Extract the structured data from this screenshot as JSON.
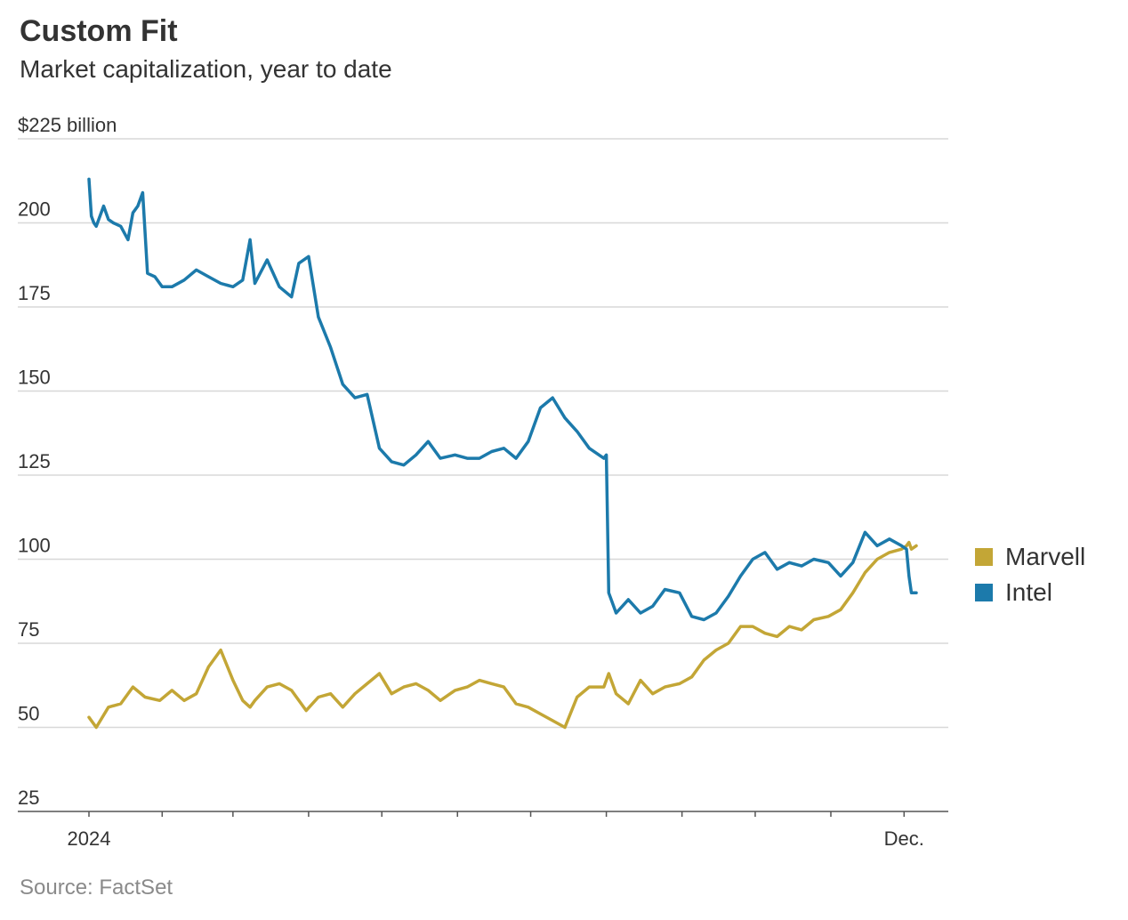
{
  "title": "Custom Fit",
  "subtitle": "Market capitalization, year to date",
  "source": "Source: FactSet",
  "colors": {
    "Marvell": "#c3a636",
    "Intel": "#1c7aab",
    "grid": "#d8d8d8",
    "axis": "#555555"
  },
  "chart_data": {
    "type": "line",
    "title": "Custom Fit",
    "subtitle": "Market capitalization, year to date",
    "ylim": [
      25,
      225
    ],
    "yticks": [
      25,
      50,
      75,
      100,
      125,
      150,
      175,
      200,
      225
    ],
    "ytick_labels": [
      "25",
      "50",
      "75",
      "100",
      "125",
      "150",
      "175",
      "200",
      "$225 billion"
    ],
    "xlim": [
      "2024-01-02",
      "2024-12-06"
    ],
    "xticks": [
      "2024-01-02",
      "2024-02-01",
      "2024-03-01",
      "2024-04-01",
      "2024-05-01",
      "2024-06-01",
      "2024-07-01",
      "2024-08-01",
      "2024-09-01",
      "2024-10-01",
      "2024-11-01",
      "2024-12-01"
    ],
    "xtick_labels": [
      "2024",
      "",
      "",
      "",
      "",
      "",
      "",
      "",
      "",
      "",
      "",
      "Dec."
    ],
    "grid": true,
    "legend": "right",
    "series": [
      {
        "name": "Marvell",
        "x": [
          "2024-01-02",
          "2024-01-05",
          "2024-01-10",
          "2024-01-15",
          "2024-01-20",
          "2024-01-25",
          "2024-01-31",
          "2024-02-05",
          "2024-02-10",
          "2024-02-15",
          "2024-02-20",
          "2024-02-25",
          "2024-03-01",
          "2024-03-05",
          "2024-03-08",
          "2024-03-10",
          "2024-03-15",
          "2024-03-20",
          "2024-03-25",
          "2024-03-31",
          "2024-04-05",
          "2024-04-10",
          "2024-04-15",
          "2024-04-20",
          "2024-04-25",
          "2024-04-30",
          "2024-05-05",
          "2024-05-10",
          "2024-05-15",
          "2024-05-20",
          "2024-05-25",
          "2024-05-31",
          "2024-06-05",
          "2024-06-10",
          "2024-06-15",
          "2024-06-20",
          "2024-06-25",
          "2024-06-30",
          "2024-07-05",
          "2024-07-10",
          "2024-07-15",
          "2024-07-20",
          "2024-07-25",
          "2024-07-31",
          "2024-08-02",
          "2024-08-05",
          "2024-08-10",
          "2024-08-15",
          "2024-08-20",
          "2024-08-25",
          "2024-08-31",
          "2024-09-05",
          "2024-09-10",
          "2024-09-15",
          "2024-09-20",
          "2024-09-25",
          "2024-09-30",
          "2024-10-05",
          "2024-10-10",
          "2024-10-15",
          "2024-10-20",
          "2024-10-25",
          "2024-10-31",
          "2024-11-05",
          "2024-11-10",
          "2024-11-15",
          "2024-11-20",
          "2024-11-25",
          "2024-11-30",
          "2024-12-02",
          "2024-12-03",
          "2024-12-04",
          "2024-12-06"
        ],
        "values": [
          53,
          50,
          56,
          57,
          62,
          59,
          58,
          61,
          58,
          60,
          68,
          73,
          64,
          58,
          56,
          58,
          62,
          63,
          61,
          55,
          59,
          60,
          56,
          60,
          63,
          66,
          60,
          62,
          63,
          61,
          58,
          61,
          62,
          64,
          63,
          62,
          57,
          56,
          54,
          52,
          50,
          59,
          62,
          62,
          66,
          60,
          57,
          64,
          60,
          62,
          63,
          65,
          70,
          73,
          75,
          80,
          80,
          78,
          77,
          80,
          79,
          82,
          83,
          85,
          90,
          96,
          100,
          102,
          103,
          104,
          105,
          103,
          104
        ]
      },
      {
        "name": "Intel",
        "x": [
          "2024-01-02",
          "2024-01-03",
          "2024-01-04",
          "2024-01-05",
          "2024-01-08",
          "2024-01-10",
          "2024-01-12",
          "2024-01-15",
          "2024-01-18",
          "2024-01-20",
          "2024-01-22",
          "2024-01-24",
          "2024-01-26",
          "2024-01-29",
          "2024-02-01",
          "2024-02-05",
          "2024-02-10",
          "2024-02-15",
          "2024-02-20",
          "2024-02-25",
          "2024-03-01",
          "2024-03-05",
          "2024-03-08",
          "2024-03-10",
          "2024-03-15",
          "2024-03-20",
          "2024-03-25",
          "2024-03-28",
          "2024-04-01",
          "2024-04-05",
          "2024-04-10",
          "2024-04-15",
          "2024-04-20",
          "2024-04-25",
          "2024-04-30",
          "2024-05-05",
          "2024-05-10",
          "2024-05-15",
          "2024-05-20",
          "2024-05-25",
          "2024-05-31",
          "2024-06-05",
          "2024-06-10",
          "2024-06-15",
          "2024-06-20",
          "2024-06-25",
          "2024-06-30",
          "2024-07-05",
          "2024-07-10",
          "2024-07-15",
          "2024-07-20",
          "2024-07-25",
          "2024-07-31",
          "2024-08-01",
          "2024-08-02",
          "2024-08-05",
          "2024-08-10",
          "2024-08-15",
          "2024-08-20",
          "2024-08-25",
          "2024-08-31",
          "2024-09-05",
          "2024-09-10",
          "2024-09-15",
          "2024-09-20",
          "2024-09-25",
          "2024-09-30",
          "2024-10-05",
          "2024-10-10",
          "2024-10-15",
          "2024-10-20",
          "2024-10-25",
          "2024-10-31",
          "2024-11-05",
          "2024-11-10",
          "2024-11-15",
          "2024-11-20",
          "2024-11-25",
          "2024-11-30",
          "2024-12-02",
          "2024-12-03",
          "2024-12-04",
          "2024-12-06"
        ],
        "values": [
          213,
          202,
          200,
          199,
          205,
          201,
          200,
          199,
          195,
          203,
          205,
          209,
          185,
          184,
          181,
          181,
          183,
          186,
          184,
          182,
          181,
          183,
          195,
          182,
          189,
          181,
          178,
          188,
          190,
          172,
          163,
          152,
          148,
          149,
          133,
          129,
          128,
          131,
          135,
          130,
          131,
          130,
          130,
          132,
          133,
          130,
          135,
          145,
          148,
          142,
          138,
          133,
          130,
          131,
          90,
          84,
          88,
          84,
          86,
          91,
          90,
          83,
          82,
          84,
          89,
          95,
          100,
          102,
          97,
          99,
          98,
          100,
          99,
          95,
          99,
          108,
          104,
          106,
          104,
          103,
          95,
          90,
          90
        ]
      }
    ]
  },
  "legend": {
    "items": [
      {
        "label": "Marvell"
      },
      {
        "label": "Intel"
      }
    ]
  }
}
